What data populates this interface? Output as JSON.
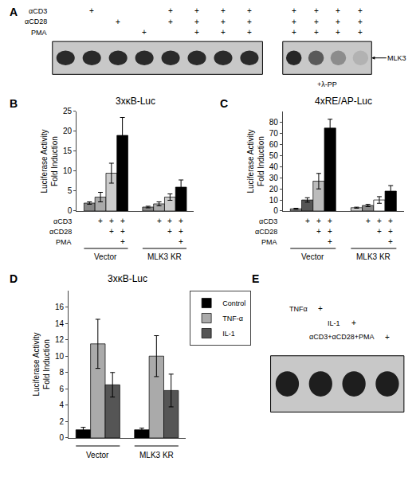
{
  "chart_data": [
    {
      "type": "gel",
      "annotations": [
        "A"
      ],
      "rows": [
        "αCD3",
        "αCD28",
        "PMA"
      ],
      "gels": [
        {
          "lanes": [
            {
              "labels": [
                null,
                null,
                null
              ],
              "color": "#2a2a2a"
            },
            {
              "labels": [
                "+",
                null,
                null
              ],
              "color": "#2a2a2a"
            },
            {
              "labels": [
                null,
                "+",
                null
              ],
              "color": "#2a2a2a"
            },
            {
              "labels": [
                null,
                null,
                "+"
              ],
              "color": "#2a2a2a"
            },
            {
              "labels": [
                "+",
                "+",
                null
              ],
              "color": "#2a2a2a"
            },
            {
              "labels": [
                "+",
                "+",
                "+"
              ],
              "color": "#2a2a2a"
            },
            {
              "labels": [
                "+",
                "+",
                "+"
              ],
              "color": "#2a2a2a"
            },
            {
              "labels": [
                "+",
                "+",
                "+"
              ],
              "color": "#2a2a2a"
            }
          ]
        },
        {
          "lanes": [
            {
              "labels": [
                "+",
                "+",
                "+"
              ],
              "color": "#262626"
            },
            {
              "labels": [
                "+",
                "+",
                "+"
              ],
              "color": "#595959"
            },
            {
              "labels": [
                "+",
                "+",
                "+"
              ],
              "color": "#8c8c8c"
            },
            {
              "labels": [
                "+",
                "+",
                "+"
              ],
              "color": "#b2b2b2"
            }
          ],
          "label": "MLK3",
          "note": "+λ-PP"
        }
      ]
    },
    {
      "type": "bar",
      "annotations": [
        "B"
      ],
      "title": "3xκB-Luc",
      "ylabel": "Luciferase Activity\nFold Induction",
      "categories": [
        "Vector",
        "MLK3 KR"
      ],
      "series": [
        {
          "colors": [
            "#888888",
            "#888888"
          ],
          "values": [
            2.0,
            1.0
          ],
          "errors": [
            0.3,
            0.2
          ]
        },
        {
          "colors": [
            "#aaaaaa",
            "#aaaaaa"
          ],
          "values": [
            3.5,
            1.8
          ],
          "errors": [
            1.2,
            0.5
          ]
        },
        {
          "colors": [
            "#cccccc",
            "#cccccc"
          ],
          "values": [
            9.5,
            3.5
          ],
          "errors": [
            2.5,
            0.8
          ]
        },
        {
          "colors": [
            "#000000",
            "#000000"
          ],
          "values": [
            19.0,
            6.0
          ],
          "errors": [
            4.5,
            1.8
          ]
        }
      ],
      "conditions": [
        {
          "name": "αCD3",
          "labels": [
            null,
            "+",
            "+",
            "+"
          ]
        },
        {
          "name": "αCD28",
          "labels": [
            null,
            null,
            "+",
            "+"
          ]
        },
        {
          "name": "PMA",
          "labels": [
            null,
            null,
            null,
            "+"
          ]
        }
      ],
      "ylim": [
        0,
        25
      ],
      "yticks": [
        0,
        5,
        10,
        15,
        20,
        25
      ],
      "grid": false
    },
    {
      "type": "bar",
      "annotations": [
        "C"
      ],
      "title": "4xRE/AP-Luc",
      "ylabel": "Luciferase Activity\nFold Induction",
      "categories": [
        "Vector",
        "MLK3 KR"
      ],
      "series": [
        {
          "colors": [
            "#888888",
            "#cccccc"
          ],
          "values": [
            2.0,
            3.0
          ],
          "errors": [
            0.5,
            0.5
          ]
        },
        {
          "colors": [
            "#555555",
            "#888888"
          ],
          "values": [
            10.0,
            5.0
          ],
          "errors": [
            2.0,
            1.0
          ]
        },
        {
          "colors": [
            "#bbbbbb",
            "#ffffff"
          ],
          "values": [
            27.0,
            10.0
          ],
          "errors": [
            7.0,
            3.0
          ]
        },
        {
          "colors": [
            "#000000",
            "#000000"
          ],
          "values": [
            75.0,
            18.0
          ],
          "errors": [
            8.0,
            5.0
          ]
        }
      ],
      "conditions": [
        {
          "name": "αCD3",
          "labels": [
            null,
            "+",
            "+",
            "+"
          ]
        },
        {
          "name": "αCD28",
          "labels": [
            null,
            null,
            "+",
            "+"
          ]
        },
        {
          "name": "PMA",
          "labels": [
            null,
            null,
            null,
            "+"
          ]
        }
      ],
      "ylim": [
        0,
        90
      ],
      "yticks": [
        0,
        10,
        20,
        30,
        40,
        50,
        60,
        70,
        80
      ],
      "grid": false
    },
    {
      "type": "bar",
      "annotations": [
        "D"
      ],
      "title": "3xκB-Luc",
      "ylabel": "Luciferase Activity\nFold Induction",
      "categories": [
        "Vector",
        "MLK3 KR"
      ],
      "series": [
        {
          "name": "Control",
          "color": "#000000",
          "values": [
            1.0,
            1.0
          ],
          "errors": [
            0.3,
            0.2
          ]
        },
        {
          "name": "TNF-α",
          "color": "#aaaaaa",
          "values": [
            11.5,
            10.0
          ],
          "errors": [
            3.0,
            2.5
          ]
        },
        {
          "name": "IL-1",
          "color": "#555555",
          "values": [
            6.5,
            5.8
          ],
          "errors": [
            1.5,
            2.0
          ]
        }
      ],
      "ylim": [
        0,
        18
      ],
      "yticks": [
        0,
        2,
        4,
        6,
        8,
        10,
        12,
        14,
        16
      ],
      "legend": "upper right",
      "grid": false
    },
    {
      "type": "gel",
      "annotations": [
        "E"
      ],
      "rows": [
        "TNFα",
        "IL-1",
        "αCD3+αCD28+PMA"
      ],
      "gels": [
        {
          "lanes": [
            {
              "labels": [
                null,
                null,
                null
              ],
              "color": "#1e1e1e"
            },
            {
              "labels": [
                "+",
                null,
                null
              ],
              "color": "#1e1e1e"
            },
            {
              "labels": [
                null,
                "+",
                null
              ],
              "color": "#1e1e1e"
            },
            {
              "labels": [
                null,
                null,
                "+"
              ],
              "color": "#1e1e1e"
            }
          ]
        }
      ]
    }
  ]
}
